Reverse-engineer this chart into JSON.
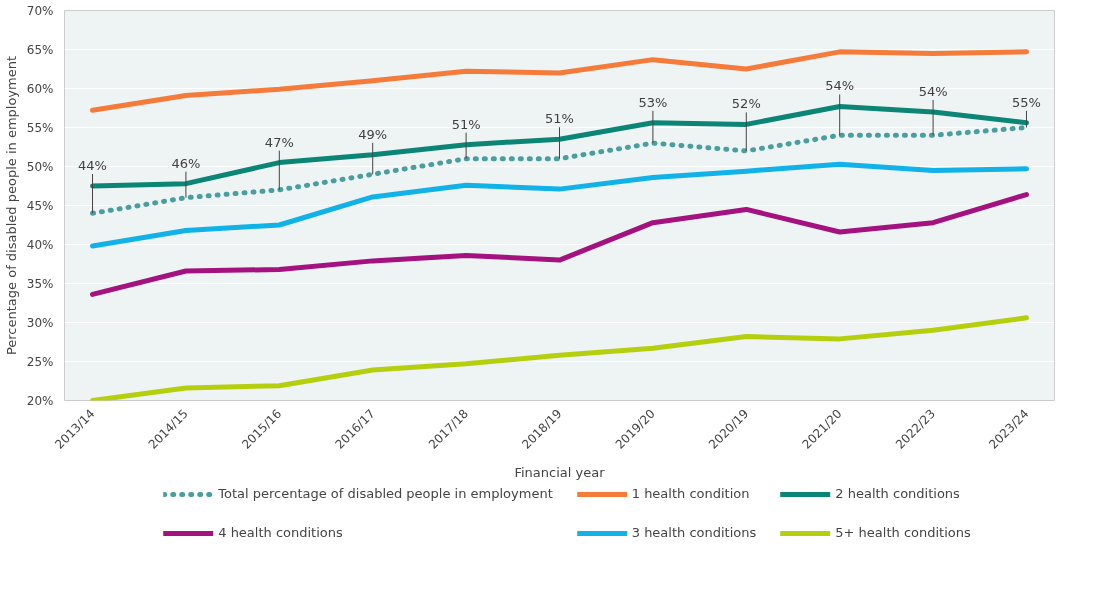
{
  "chart_data": {
    "type": "line",
    "xlabel": "Financial year",
    "ylabel": "Percentage of disabled people in employment",
    "categories": [
      "2013/14",
      "2014/15",
      "2015/16",
      "2016/17",
      "2017/18",
      "2018/19",
      "2019/20",
      "2020/19",
      "2021/20",
      "2022/23",
      "2023/24"
    ],
    "ylim": [
      20,
      70
    ],
    "yticks": [
      {
        "value": 20,
        "label": "20%"
      },
      {
        "value": 25,
        "label": "25%"
      },
      {
        "value": 30,
        "label": "30%"
      },
      {
        "value": 35,
        "label": "35%"
      },
      {
        "value": 40,
        "label": "40%"
      },
      {
        "value": 45,
        "label": "45%"
      },
      {
        "value": 50,
        "label": "50%"
      },
      {
        "value": 55,
        "label": "55%"
      },
      {
        "value": 60,
        "label": "60%"
      },
      {
        "value": 65,
        "label": "65%"
      },
      {
        "value": 70,
        "label": "70%"
      }
    ],
    "grid": "y",
    "legend": "bottom",
    "line_style": "solid",
    "series": [
      {
        "name": "Total percentage of disabled people in employment",
        "color": "#4a9ea0",
        "line_style": "dotted",
        "value_labels": [
          "44%",
          "46%",
          "47%",
          "49%",
          "51%",
          "51%",
          "53%",
          "52%",
          "54%",
          "54%",
          "55%"
        ],
        "values": [
          44,
          46,
          47,
          49,
          51,
          51,
          53,
          52,
          54,
          54,
          55
        ]
      },
      {
        "name": "1 health condition",
        "color": "#f47b3a",
        "values": [
          57.2,
          59.1,
          59.9,
          61.0,
          62.2,
          62.0,
          63.7,
          62.5,
          64.7,
          64.5,
          64.7
        ]
      },
      {
        "name": "2 health conditions",
        "color": "#0b8575",
        "values": [
          47.5,
          47.8,
          50.5,
          51.5,
          52.8,
          53.5,
          55.6,
          55.4,
          57.7,
          57.0,
          55.6
        ]
      },
      {
        "name": "4 health conditions",
        "color": "#a3127f",
        "values": [
          33.6,
          36.6,
          36.8,
          37.9,
          38.6,
          38.0,
          42.8,
          44.5,
          41.6,
          42.8,
          46.4
        ]
      },
      {
        "name": "3 health conditions",
        "color": "#11b2e8",
        "values": [
          39.8,
          41.8,
          42.5,
          46.1,
          47.6,
          47.1,
          48.6,
          49.4,
          50.3,
          49.5,
          49.7
        ]
      },
      {
        "name": "5+ health conditions",
        "color": "#b5cf0f",
        "values": [
          20.0,
          21.6,
          21.9,
          23.9,
          24.7,
          25.8,
          26.7,
          28.2,
          27.9,
          29.0,
          30.6
        ]
      }
    ]
  }
}
